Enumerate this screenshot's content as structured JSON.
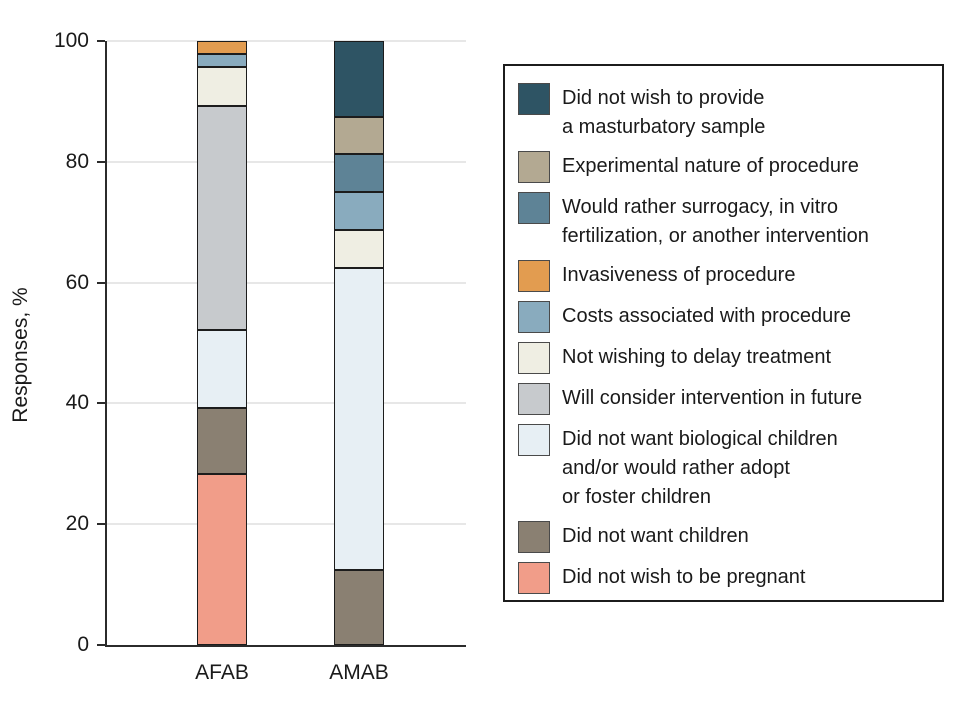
{
  "chart_data": {
    "type": "bar",
    "stacked": true,
    "title": "",
    "xlabel": "",
    "ylabel": "Responses, %",
    "ylim": [
      0,
      100
    ],
    "yticks": [
      0,
      20,
      40,
      60,
      80,
      100
    ],
    "grid": "horizontal",
    "legend_position": "right",
    "categories": [
      "AFAB",
      "AMAB"
    ],
    "series": [
      {
        "name": "Did not wish to be pregnant",
        "color": "#F19D89",
        "values": [
          28.3,
          0
        ]
      },
      {
        "name": "Did not want children",
        "color": "#8A8072",
        "values": [
          10.9,
          12.5
        ]
      },
      {
        "name": "Did not want biological children and/or would rather adopt or foster children",
        "color": "#E7EFF4",
        "values": [
          13.0,
          50.0
        ]
      },
      {
        "name": "Will consider intervention in future",
        "color": "#C7CACD",
        "values": [
          37.0,
          0
        ]
      },
      {
        "name": "Not wishing to delay treatment",
        "color": "#EFEEE3",
        "values": [
          6.5,
          6.25
        ]
      },
      {
        "name": "Costs associated with procedure",
        "color": "#89ABBE",
        "values": [
          2.2,
          6.25
        ]
      },
      {
        "name": "Invasiveness of procedure",
        "color": "#E29C50",
        "values": [
          2.1,
          0
        ]
      },
      {
        "name": "Would rather surrogacy, in vitro fertilization, or another intervention",
        "color": "#5E8396",
        "values": [
          0,
          6.25
        ]
      },
      {
        "name": "Experimental nature of procedure",
        "color": "#B3A992",
        "values": [
          0,
          6.25
        ]
      },
      {
        "name": "Did not wish to provide a masturbatory sample",
        "color": "#2E5464",
        "values": [
          0,
          12.5
        ]
      }
    ],
    "legend": [
      {
        "label": "Did not wish to provide\na masturbatory sample",
        "color": "#2E5464"
      },
      {
        "label": "Experimental nature of procedure",
        "color": "#B3A992"
      },
      {
        "label": "Would rather surrogacy, in vitro\nfertilization, or another intervention",
        "color": "#5E8396"
      },
      {
        "label": "Invasiveness of procedure",
        "color": "#E29C50"
      },
      {
        "label": "Costs associated with procedure",
        "color": "#89ABBE"
      },
      {
        "label": "Not wishing to delay treatment",
        "color": "#EFEEE3"
      },
      {
        "label": "Will consider intervention in future",
        "color": "#C7CACD"
      },
      {
        "label": "Did not want biological children\nand/or would rather adopt\nor foster children",
        "color": "#E7EFF4"
      },
      {
        "label": "Did not want children",
        "color": "#8A8072"
      },
      {
        "label": "Did not wish to be pregnant",
        "color": "#F19D89"
      }
    ]
  }
}
